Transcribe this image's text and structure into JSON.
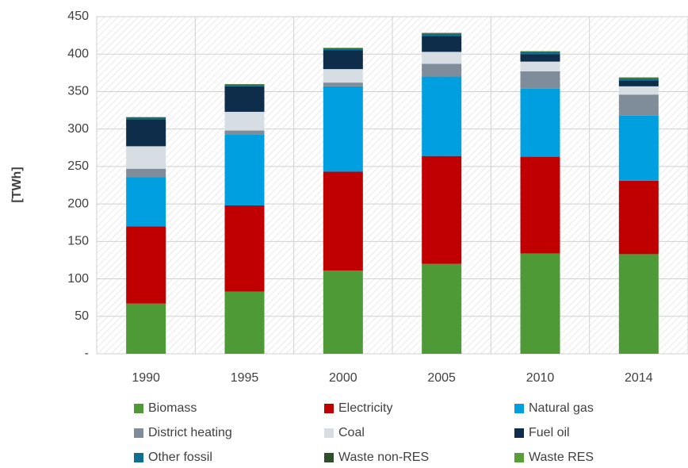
{
  "chart_data": {
    "type": "stacked_bar",
    "y_label": "[TWh]",
    "categories": [
      "1990",
      "1995",
      "2000",
      "2005",
      "2010",
      "2014"
    ],
    "series": [
      {
        "name": "Biomass",
        "color": "#4e9a37",
        "values": [
          67,
          83,
          111,
          120,
          134,
          133
        ]
      },
      {
        "name": "Electricity",
        "color": "#c00000",
        "values": [
          103,
          115,
          132,
          144,
          129,
          98
        ]
      },
      {
        "name": "Natural gas",
        "color": "#00a0e0",
        "values": [
          66,
          95,
          114,
          106,
          91,
          87
        ]
      },
      {
        "name": "District heating",
        "color": "#7f8c9a",
        "values": [
          11,
          5,
          5,
          17,
          23,
          28
        ]
      },
      {
        "name": "Coal",
        "color": "#d6dde3",
        "values": [
          30,
          25,
          18,
          16,
          13,
          11
        ]
      },
      {
        "name": "Fuel oil",
        "color": "#0d2d4a",
        "values": [
          36,
          34,
          25,
          21,
          10,
          8
        ]
      },
      {
        "name": "Other fossil",
        "color": "#0e6f8f",
        "values": [
          2,
          2,
          2,
          3,
          3,
          2
        ]
      },
      {
        "name": "Waste non-RES",
        "color": "#2d4f2a",
        "values": [
          0.5,
          0.5,
          1,
          1,
          0.5,
          1
        ]
      },
      {
        "name": "Waste RES",
        "color": "#5a9e3a",
        "values": [
          0.5,
          0.5,
          0.5,
          0.5,
          0.5,
          1
        ]
      }
    ],
    "ylim": [
      0,
      450
    ],
    "yticks": [
      {
        "value": 0,
        "label": "-"
      },
      50,
      100,
      150,
      200,
      250,
      300,
      350,
      400,
      450
    ],
    "grid": true,
    "legend": "bottom"
  }
}
